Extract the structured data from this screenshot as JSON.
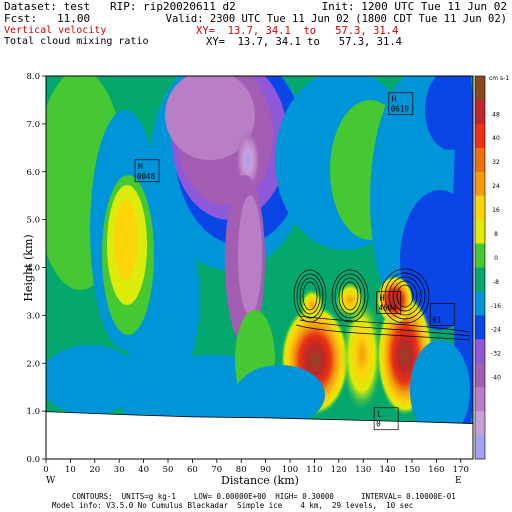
{
  "header": {
    "dataset": "Dataset: test   RIP: rip20020611 d2",
    "init": "Init: 1200 UTC Tue 11 Jun 02",
    "fcst": "Fcst:   11.00",
    "valid": "Valid: 2300 UTC Tue 11 Jun 02 (1800 CDT Tue 11 Jun 02)",
    "field1": "Vertical velocity",
    "field1_xy": "XY=  13.7, 34.1  to   57.3, 31.4",
    "field2": "Total cloud mixing ratio",
    "field2_xy": "XY=  13.7, 34.1 to   57.3, 31.4"
  },
  "footer": {
    "contours": "CONTOURS:  UNITS=g kg-1    LOW= 0.00000E+00  HIGH= 0.30000      INTERVAL= 0.10000E-01",
    "model_info": "Model info: V3.5.0 No Cumulus Blackadar  Simple ice    4 km,  29 levels,  10 sec"
  },
  "colors": {
    "vv_scale": [
      "#8a4a1e",
      "#c0262a",
      "#ea3214",
      "#f06e0c",
      "#f39c0e",
      "#fdd40a",
      "#dceb0a",
      "#46c832",
      "#05a86c",
      "#0094d8",
      "#0a46e6",
      "#8e58d8",
      "#a35eb4",
      "#b87ec6",
      "#c8a0d8",
      "#a4a0ec"
    ],
    "ground": "#ffffff"
  },
  "chart_data": {
    "type": "heatmap",
    "xlabel": "Distance  (km)",
    "ylabel": "Height (km)",
    "xlim": [
      0,
      175
    ],
    "ylim": [
      0,
      8
    ],
    "x_ticks": [
      "0",
      "10",
      "20",
      "30",
      "40",
      "50",
      "60",
      "70",
      "80",
      "90",
      "100",
      "110",
      "120",
      "130",
      "140",
      "150",
      "160",
      "170"
    ],
    "y_ticks": [
      "0.0",
      "1.0",
      "2.0",
      "3.0",
      "4.0",
      "5.0",
      "6.0",
      "7.0",
      "8.0"
    ],
    "left_end_label": "W",
    "right_end_label": "E",
    "colorbar_unit": "cm s-1",
    "colorbar_labels": [
      "48",
      "40",
      "32",
      "24",
      "16",
      "8",
      "0",
      "-8",
      "-16",
      "-24",
      "-32",
      "-40"
    ],
    "annotations": [
      {
        "text_top": "H",
        "text_bottom": "0048",
        "x": 41,
        "y": 6.0
      },
      {
        "text_top": "H",
        "text_bottom": "0619",
        "x": 145,
        "y": 7.4
      },
      {
        "text_top": "H",
        "text_bottom": "4694",
        "x": 140,
        "y": 3.25
      },
      {
        "text_top": "L",
        "text_bottom": "0",
        "x": 139,
        "y": 0.82
      },
      {
        "text_top": "",
        "text_bottom": "01",
        "x": 162,
        "y": 3.0
      }
    ],
    "terrain": [
      [
        0,
        0.99
      ],
      [
        30,
        0.93
      ],
      [
        60,
        0.88
      ],
      [
        90,
        0.86
      ],
      [
        120,
        0.82
      ],
      [
        150,
        0.78
      ],
      [
        175,
        0.74
      ]
    ]
  }
}
